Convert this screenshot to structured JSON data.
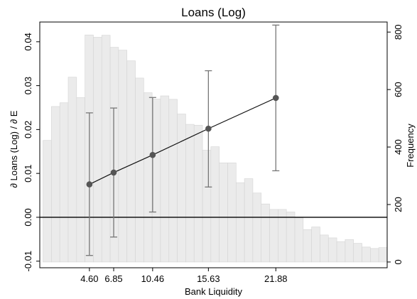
{
  "chart_data": {
    "type": "bar+line",
    "title": "Loans (Log)",
    "xlabel": "Bank Liquidity",
    "ylabel_left": "∂ Loans (Log) / ∂ E",
    "ylabel_right": "Frequency",
    "x_ticks": [
      "4.60",
      "6.85",
      "10.46",
      "15.63",
      "21.88"
    ],
    "y_left_ticks": [
      "-0.01",
      "0.00",
      "0.01",
      "0.02",
      "0.03",
      "0.04"
    ],
    "y_right_ticks": [
      "0",
      "200",
      "400",
      "600",
      "800"
    ],
    "ylim_left": [
      -0.0115,
      0.0445
    ],
    "ylim_right": [
      -20,
      835
    ],
    "grid": false,
    "legend": "none",
    "zero_line": 0,
    "histogram": {
      "name": "Frequency",
      "color": "#ebebeb",
      "edge_color": "#d4d4d4",
      "bin_width": 0.778,
      "bin_start": 0.3,
      "frequencies": [
        423,
        541,
        554,
        643,
        572,
        790,
        782,
        789,
        747,
        737,
        700,
        640,
        589,
        567,
        578,
        566,
        515,
        479,
        476,
        389,
        401,
        345,
        345,
        276,
        290,
        240,
        202,
        183,
        183,
        174,
        154,
        113,
        122,
        94,
        84,
        71,
        78,
        65,
        52,
        47,
        50
      ]
    },
    "series": [
      {
        "type": "line",
        "color": "#555555",
        "x": [
          4.6,
          6.85,
          10.46,
          15.63,
          21.88
        ],
        "y": [
          0.0075,
          0.0102,
          0.0142,
          0.0202,
          0.0272
        ],
        "ci_low": [
          -0.0087,
          -0.0045,
          0.0012,
          0.0069,
          0.0106
        ],
        "ci_high": [
          0.0238,
          0.0249,
          0.0273,
          0.0334,
          0.0438
        ]
      }
    ]
  }
}
